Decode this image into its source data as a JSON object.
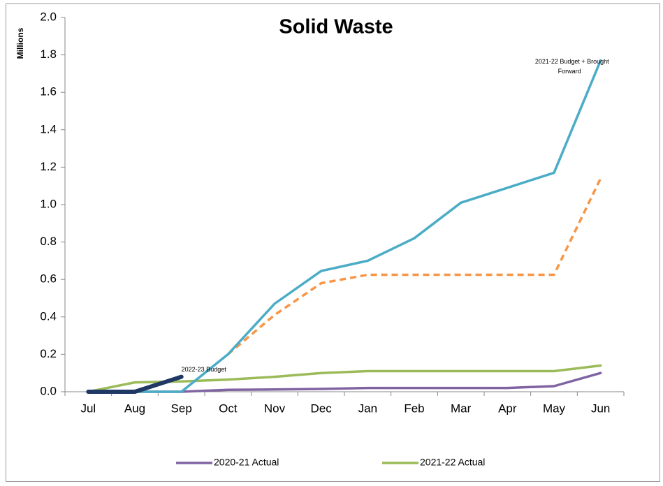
{
  "chart_data": {
    "type": "line",
    "title": "Solid Waste",
    "y_label": "Millions",
    "categories": [
      "Jul",
      "Aug",
      "Sep",
      "Oct",
      "Nov",
      "Dec",
      "Jan",
      "Feb",
      "Mar",
      "Apr",
      "May",
      "Jun"
    ],
    "ylim": [
      0,
      2.0
    ],
    "yticks": [
      {
        "value": 0,
        "label": "0.0"
      },
      0.2,
      0.4,
      0.6,
      0.8,
      {
        "value": 1.0,
        "label": "1.0"
      },
      1.2,
      1.4,
      1.6,
      1.8,
      {
        "value": 2.0,
        "label": "2.0"
      }
    ],
    "grid": false,
    "legend": "bottom",
    "series": [
      {
        "name": "2020-21 Actual",
        "color": "#8064a2",
        "values": [
          0,
          0,
          0,
          0.01,
          0.012,
          0.015,
          0.02,
          0.02,
          0.02,
          0.02,
          0.03,
          0.1
        ]
      },
      {
        "name": "2021-22 Actual",
        "color": "#9bbb59",
        "values": [
          0,
          0.05,
          0.055,
          0.065,
          0.08,
          0.1,
          0.11,
          0.11,
          0.11,
          0.11,
          0.11,
          0.14
        ]
      },
      {
        "color": "#f79646",
        "dashed": true,
        "values": [
          null,
          null,
          null,
          0.2,
          0.41,
          0.58,
          0.625,
          0.625,
          0.625,
          0.625,
          0.625,
          1.14
        ]
      },
      {
        "label": [
          "2021-22 Budget + Brought",
          "Forward"
        ],
        "color": "#4bacc6",
        "values": [
          0,
          0,
          0,
          0.2,
          0.47,
          0.645,
          0.7,
          0.82,
          1.01,
          1.09,
          1.17,
          1.77
        ]
      },
      {
        "label": [
          "2022-23 Budget"
        ],
        "color": "#1f3864",
        "thick": true,
        "values": [
          0,
          0,
          0.08,
          null,
          null,
          null,
          null,
          null,
          null,
          null,
          null,
          null
        ]
      }
    ]
  }
}
